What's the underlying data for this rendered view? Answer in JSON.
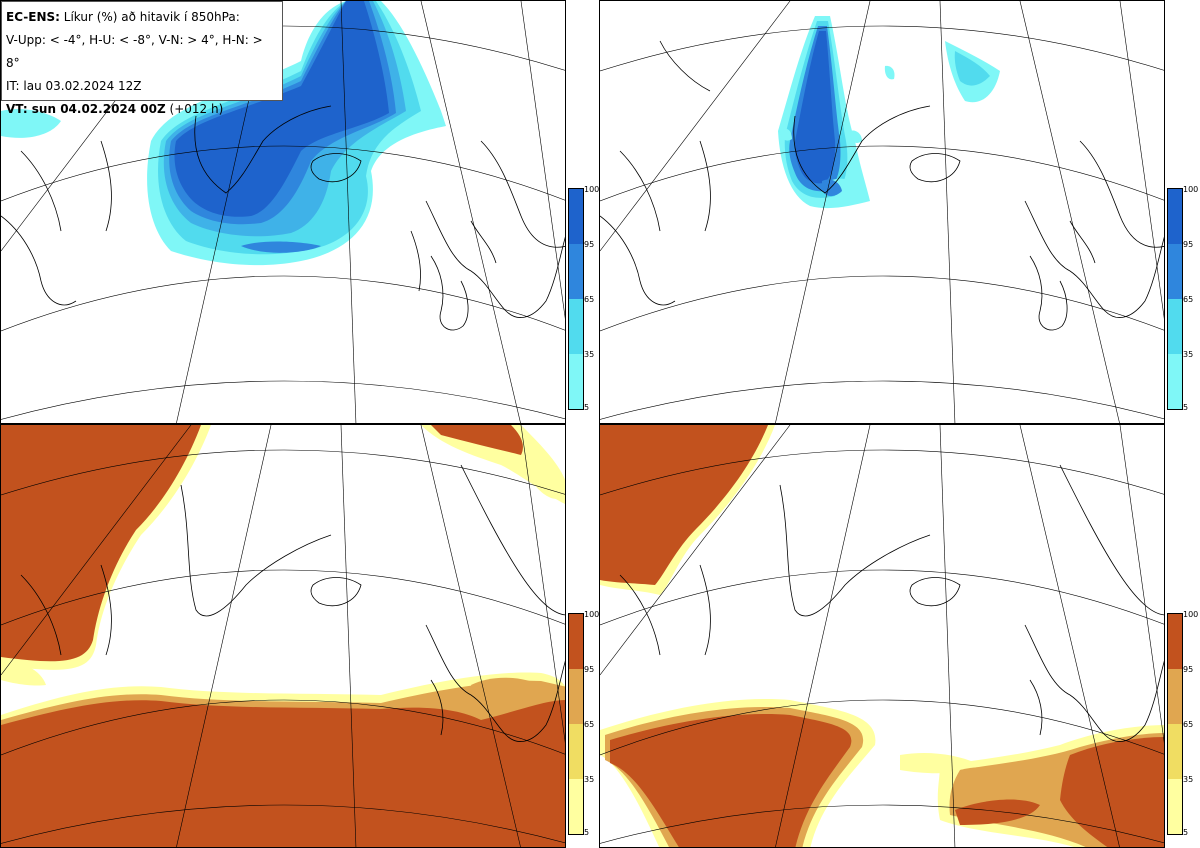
{
  "info": {
    "title_bold": "EC-ENS:",
    "title_rest": " Líkur (%) að hitavik í 850hPa:",
    "criteria": "V-Upp: < -4°, H-U: < -8°, V-N: > 4°, H-N: > 8°",
    "init_time": "IT: lau 03.02.2024 12Z",
    "valid_bold": "VT: sun 04.02.2024 00Z",
    "valid_rest": " (+012 h)"
  },
  "colorbar": {
    "labels": [
      "100",
      "95",
      "65",
      "35",
      "5"
    ],
    "levels": [
      5,
      35,
      65,
      95,
      100
    ]
  },
  "colors": {
    "cold": [
      "#7ff7f7",
      "#51dbee",
      "#3fb2e8",
      "#2f86dd",
      "#1e63cc"
    ],
    "warm": [
      "#ffffa0",
      "#f0dd62",
      "#e0a650",
      "#cb7b3a",
      "#c2521e"
    ],
    "coast": "#000000",
    "grid": "#000000"
  },
  "panels": [
    {
      "name": "cold-anomaly-4",
      "scheme": "cold"
    },
    {
      "name": "cold-anomaly-8",
      "scheme": "cold"
    },
    {
      "name": "warm-anomaly-4",
      "scheme": "warm"
    },
    {
      "name": "warm-anomaly-8",
      "scheme": "warm"
    }
  ]
}
